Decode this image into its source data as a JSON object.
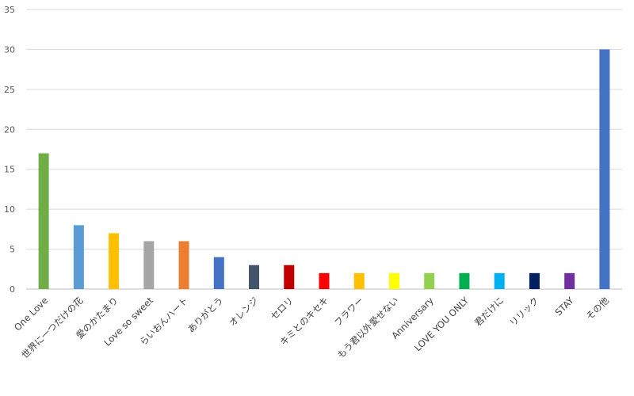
{
  "chart_data": {
    "type": "bar",
    "categories": [
      "One Love",
      "世界に一つだけの花",
      "愛のかたまり",
      "Love so sweet",
      "らいおんハート",
      "ありがとう",
      "オレンジ",
      "セロリ",
      "キミとのキセキ",
      "フラワー",
      "もう君以外愛せない",
      "Anniversary",
      "LOVE YOU ONLY",
      "君だけに",
      "リリック",
      "STAY",
      "その他"
    ],
    "values": [
      17,
      8,
      7,
      6,
      6,
      4,
      3,
      3,
      2,
      2,
      2,
      2,
      2,
      2,
      2,
      2,
      30
    ],
    "colors": [
      "#70AD47",
      "#5B9BD5",
      "#FFC000",
      "#A5A5A5",
      "#ED7D31",
      "#4472C4",
      "#44546A",
      "#C00000",
      "#FF0000",
      "#FFC000",
      "#FFFF00",
      "#92D050",
      "#00B050",
      "#00B0F0",
      "#002060",
      "#7030A0",
      "#4472C4"
    ],
    "ylim": [
      0,
      35
    ],
    "yticks": [
      "0",
      "5",
      "10",
      "15",
      "20",
      "25",
      "30",
      "35"
    ],
    "grid": true,
    "legend": "none"
  }
}
